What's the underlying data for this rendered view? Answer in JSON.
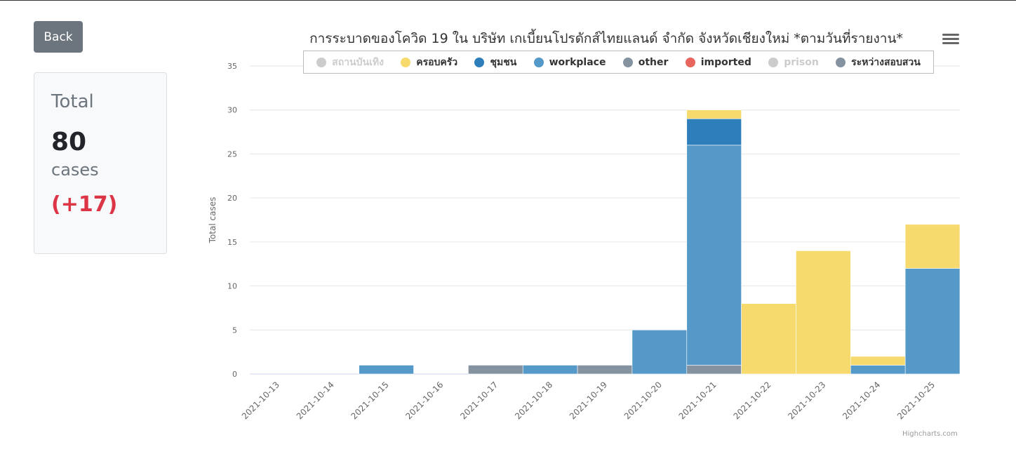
{
  "page": {
    "back_label": "Back",
    "total_label": "Total",
    "total_value": "80",
    "total_unit": "cases",
    "total_delta": "(+17)"
  },
  "credits": "Highcharts.com",
  "menu_icon": "hamburger-menu-icon",
  "chart_data": {
    "type": "bar",
    "stacked": true,
    "title": "การระบาดของโควิด 19 ใน บริษัท เกเบี้ยนโปรดักส์ไทยแลนด์ จำกัด จังหวัดเชียงใหม่ *ตามวันที่รายงาน*",
    "xlabel": "",
    "ylabel": "Total cases",
    "ylim": [
      0,
      35
    ],
    "yticks": [
      0,
      5,
      10,
      15,
      20,
      25,
      30,
      35
    ],
    "grid": true,
    "legend_position": "top",
    "categories": [
      "2021-10-13",
      "2021-10-14",
      "2021-10-15",
      "2021-10-16",
      "2021-10-17",
      "2021-10-18",
      "2021-10-19",
      "2021-10-20",
      "2021-10-21",
      "2021-10-22",
      "2021-10-23",
      "2021-10-24",
      "2021-10-25"
    ],
    "series": [
      {
        "name": "สถานบันเทิง",
        "color": "#cccccc",
        "visible": false,
        "values": [
          0,
          0,
          0,
          0,
          0,
          0,
          0,
          0,
          0,
          0,
          0,
          0,
          0
        ]
      },
      {
        "name": "ครอบครัว",
        "color": "#f7da6e",
        "visible": true,
        "values": [
          0,
          0,
          0,
          0,
          0,
          0,
          0,
          0,
          1,
          8,
          14,
          1,
          5
        ]
      },
      {
        "name": "ชุมชน",
        "color": "#2f7ebc",
        "visible": true,
        "values": [
          0,
          0,
          0,
          0,
          0,
          0,
          0,
          0,
          3,
          0,
          0,
          0,
          0
        ]
      },
      {
        "name": "workplace",
        "color": "#5499c7",
        "visible": true,
        "values": [
          0,
          0,
          1,
          0,
          0,
          1,
          0,
          5,
          25,
          0,
          0,
          1,
          12
        ]
      },
      {
        "name": "other",
        "color": "#8593a1",
        "visible": true,
        "values": [
          0,
          0,
          0,
          0,
          1,
          0,
          1,
          0,
          1,
          0,
          0,
          0,
          0
        ]
      },
      {
        "name": "imported",
        "color": "#e8665e",
        "visible": true,
        "values": [
          0,
          0,
          0,
          0,
          0,
          0,
          0,
          0,
          0,
          0,
          0,
          0,
          0
        ]
      },
      {
        "name": "prison",
        "color": "#cccccc",
        "visible": false,
        "values": [
          0,
          0,
          0,
          0,
          0,
          0,
          0,
          0,
          0,
          0,
          0,
          0,
          0
        ]
      },
      {
        "name": "ระหว่างสอบสวน",
        "color": "#8593a1",
        "visible": true,
        "values": [
          0,
          0,
          0,
          0,
          0,
          0,
          0,
          0,
          0,
          0,
          0,
          0,
          0
        ]
      }
    ]
  }
}
